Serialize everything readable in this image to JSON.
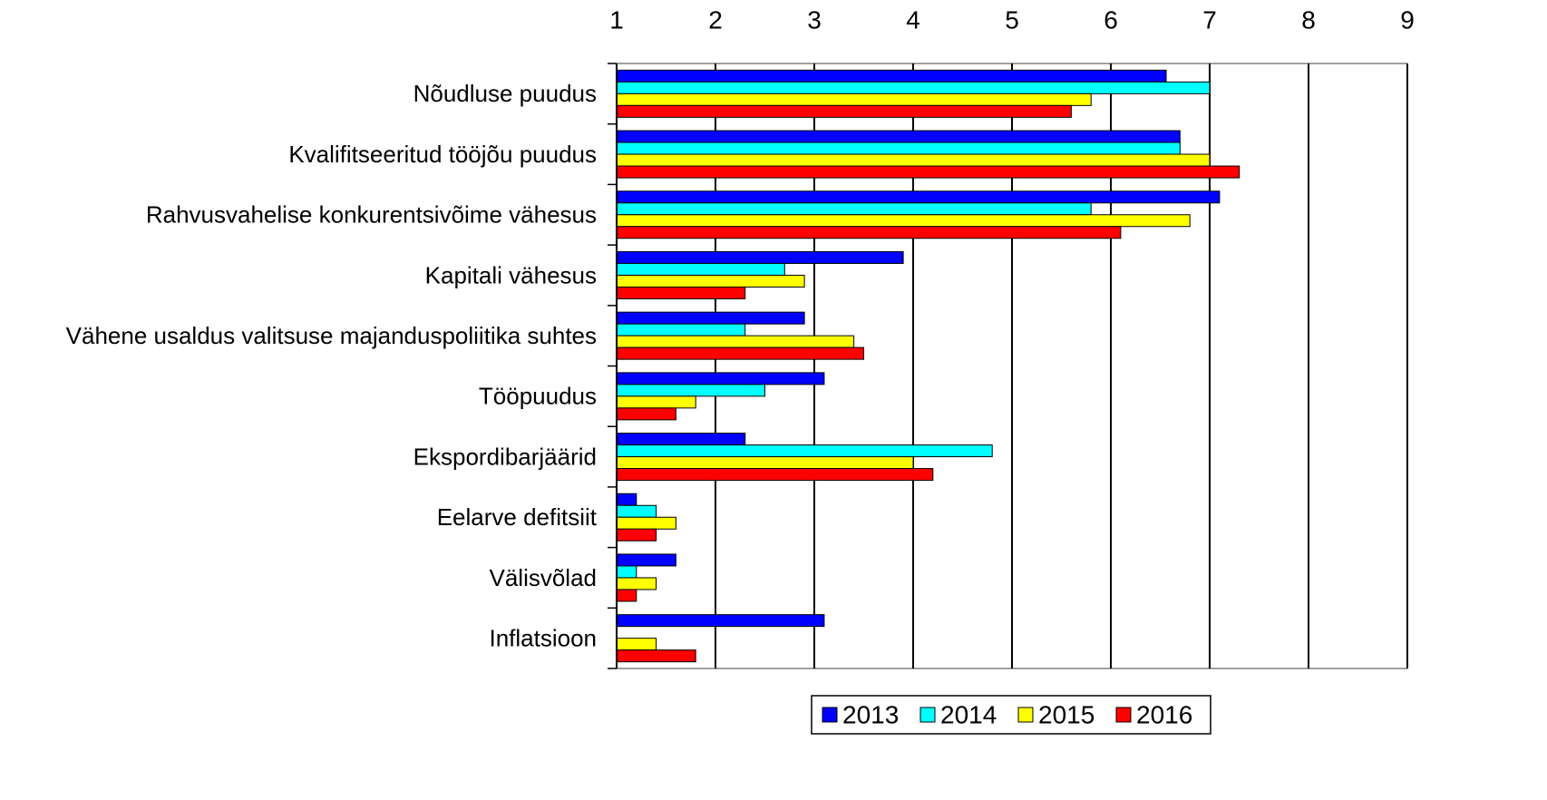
{
  "chart_data": {
    "type": "bar",
    "orientation": "horizontal",
    "categories": [
      "Nõudluse puudus",
      "Kvalifitseeritud tööjõu puudus",
      "Rahvusvahelise konkurentsivõime vähesus",
      "Kapitali vähesus",
      "Vähene usaldus valitsuse majanduspoliitika suhtes",
      "Tööpuudus",
      "Ekspordibarjäärid",
      "Eelarve defitsiit",
      "Välisvõlad",
      "Inflatsioon"
    ],
    "series": [
      {
        "name": "2013",
        "color": "#0000ff",
        "values": [
          6.56,
          6.7,
          7.1,
          3.9,
          2.9,
          3.1,
          2.3,
          1.2,
          1.6,
          3.1
        ]
      },
      {
        "name": "2014",
        "color": "#00ffff",
        "values": [
          7.0,
          6.7,
          5.8,
          2.7,
          2.3,
          2.5,
          4.8,
          1.4,
          1.2,
          null
        ]
      },
      {
        "name": "2015",
        "color": "#ffff00",
        "values": [
          5.8,
          7.0,
          6.8,
          2.9,
          3.4,
          1.8,
          4.0,
          1.6,
          1.4,
          1.4
        ]
      },
      {
        "name": "2016",
        "color": "#ff0000",
        "values": [
          5.6,
          7.3,
          6.1,
          2.3,
          3.5,
          1.6,
          4.2,
          1.4,
          1.2,
          1.8
        ]
      }
    ],
    "xlim": [
      1,
      9
    ],
    "xticks": [
      1,
      2,
      3,
      4,
      5,
      6,
      7,
      8,
      9
    ],
    "grid": true,
    "legend": "bottom"
  }
}
